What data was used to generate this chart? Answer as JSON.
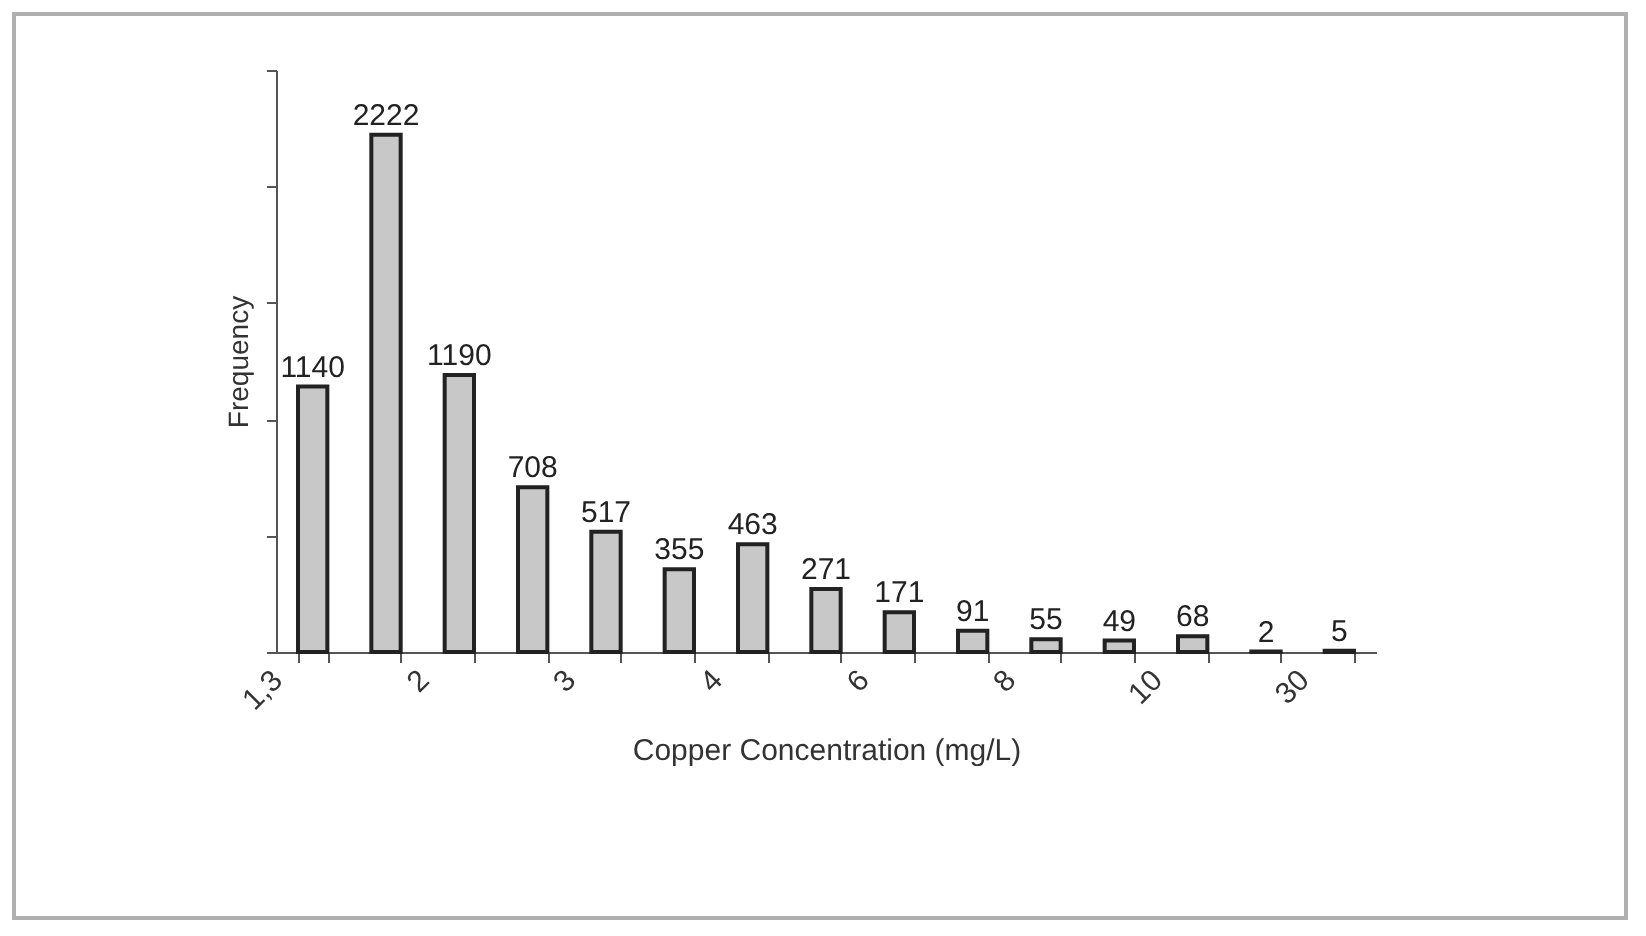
{
  "chart_data": {
    "type": "bar",
    "xlabel": "Copper Concentration (mg/L)",
    "ylabel": "Frequency",
    "categories": [
      "1,3",
      null,
      "2",
      null,
      "3",
      null,
      "4",
      null,
      "6",
      null,
      "8",
      null,
      "10",
      null,
      "30"
    ],
    "values": [
      1140,
      2222,
      1190,
      708,
      517,
      355,
      463,
      271,
      171,
      91,
      55,
      49,
      68,
      2,
      5
    ],
    "color": "#c8c8c8",
    "ylim": [
      0,
      2500
    ],
    "yticks": [
      {
        "value": 0,
        "label": null
      },
      {
        "value": 500,
        "label": null
      },
      {
        "value": 1000,
        "label": null
      },
      {
        "value": 1500,
        "label": null
      },
      {
        "value": 2000,
        "label": null
      },
      {
        "value": 2500,
        "label": null
      }
    ],
    "tick_labels": "x",
    "data_labels": true
  }
}
